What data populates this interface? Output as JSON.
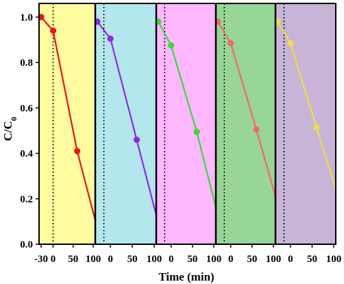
{
  "chart_data": {
    "type": "line",
    "xlabel": "Time (min)",
    "ylabel_main": "C/C",
    "ylabel_sub": "0",
    "ylim": [
      0,
      1.06
    ],
    "y_ticks": [
      "0.0",
      "0.2",
      "0.4",
      "0.6",
      "0.8",
      "1.0"
    ],
    "y_tick_values": [
      0,
      0.2,
      0.4,
      0.6,
      0.8,
      1.0
    ],
    "grid": false,
    "panels": [
      {
        "x_tick_labels": [
          "-30",
          "0",
          "50",
          "100"
        ],
        "x_tick_values": [
          -30,
          0,
          50,
          100
        ],
        "x_range": [
          -30,
          100
        ],
        "background": "#FFFCA0",
        "color": "#E8141B",
        "dark_phase_end": 0,
        "x": [
          -30,
          0,
          60,
          120
        ],
        "y": [
          1.0,
          0.94,
          0.41,
          0.005
        ]
      },
      {
        "x_tick_labels": [
          "0",
          "50",
          "100"
        ],
        "x_tick_values": [
          0,
          50,
          100
        ],
        "x_range": [
          -30,
          100
        ],
        "background": "#B4E6EE",
        "color": "#8A2BE2",
        "dark_phase_end": -15,
        "x": [
          -30,
          0,
          60,
          120
        ],
        "y": [
          0.98,
          0.905,
          0.46,
          0.015
        ]
      },
      {
        "x_tick_labels": [
          "0",
          "50",
          "100"
        ],
        "x_tick_values": [
          0,
          50,
          100
        ],
        "x_range": [
          -30,
          100
        ],
        "background": "#FFB8FF",
        "color": "#3CD63C",
        "dark_phase_end": -15,
        "x": [
          -30,
          0,
          60,
          120
        ],
        "y": [
          0.98,
          0.875,
          0.495,
          0.05
        ]
      },
      {
        "x_tick_labels": [
          "0",
          "50",
          "100"
        ],
        "x_tick_values": [
          0,
          50,
          100
        ],
        "x_range": [
          -30,
          100
        ],
        "background": "#98D598",
        "color": "#F06A63",
        "dark_phase_end": -15,
        "x": [
          -30,
          0,
          60,
          120
        ],
        "y": [
          0.98,
          0.885,
          0.505,
          0.11
        ]
      },
      {
        "x_tick_labels": [
          "0",
          "50",
          "100"
        ],
        "x_tick_values": [
          0,
          50,
          100
        ],
        "x_range": [
          -30,
          100
        ],
        "background": "#C8B4D6",
        "color": "#F0DC4C",
        "dark_phase_end": -15,
        "x": [
          -30,
          0,
          60,
          120
        ],
        "y": [
          0.98,
          0.885,
          0.515,
          0.15
        ]
      }
    ]
  }
}
